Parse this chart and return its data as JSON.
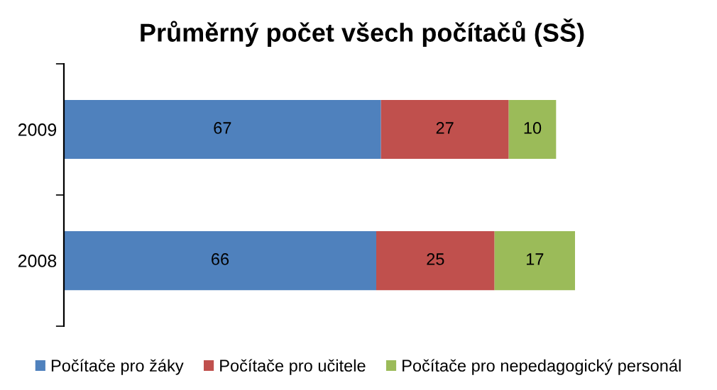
{
  "chart_data": {
    "type": "bar",
    "orientation": "horizontal",
    "stacked": true,
    "title": "Průměrný počet všech počítačů (SŠ)",
    "categories": [
      "2009",
      "2008"
    ],
    "series": [
      {
        "name": "Počítače pro žáky",
        "color": "#4f81bd",
        "values": [
          67,
          66
        ]
      },
      {
        "name": "Počítače pro učitele",
        "color": "#c0504d",
        "values": [
          27,
          25
        ]
      },
      {
        "name": "Počítače pro nepedagogický personál",
        "color": "#9bbb59",
        "values": [
          10,
          17
        ]
      }
    ],
    "data_labels": true,
    "legend": "bottom",
    "grid": false,
    "tick_labels": "y"
  }
}
